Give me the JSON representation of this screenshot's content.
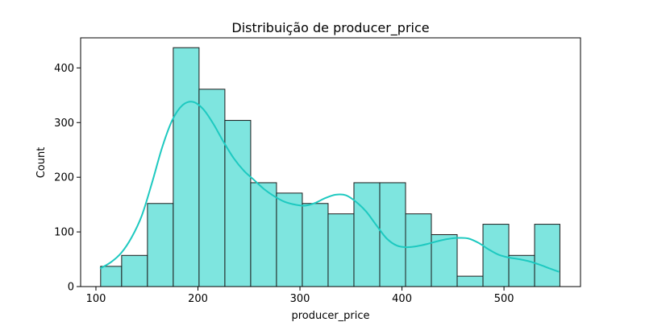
{
  "chart_data": {
    "type": "bar",
    "title": "Distribuição de producer_price",
    "xlabel": "producer_price",
    "ylabel": "Count",
    "xlim": [
      85,
      575
    ],
    "ylim": [
      0,
      455
    ],
    "x_ticks": [
      100,
      200,
      300,
      400,
      500
    ],
    "y_ticks": [
      0,
      100,
      200,
      300,
      400
    ],
    "grid": false,
    "bin_edges": [
      104.6,
      125.2,
      150.5,
      175.8,
      201.1,
      226.4,
      251.7,
      277.0,
      302.3,
      327.6,
      352.9,
      378.2,
      403.5,
      428.8,
      454.1,
      479.4,
      504.7,
      530.0,
      554.8
    ],
    "bins": [
      {
        "x0": 104.6,
        "x1": 125.2,
        "count": 37
      },
      {
        "x0": 125.2,
        "x1": 150.5,
        "count": 57
      },
      {
        "x0": 150.5,
        "x1": 175.8,
        "count": 152
      },
      {
        "x0": 175.8,
        "x1": 201.1,
        "count": 437
      },
      {
        "x0": 201.1,
        "x1": 226.4,
        "count": 361
      },
      {
        "x0": 226.4,
        "x1": 251.7,
        "count": 304
      },
      {
        "x0": 251.7,
        "x1": 277.0,
        "count": 190
      },
      {
        "x0": 277.0,
        "x1": 302.3,
        "count": 171
      },
      {
        "x0": 302.3,
        "x1": 327.6,
        "count": 152
      },
      {
        "x0": 327.6,
        "x1": 352.9,
        "count": 133
      },
      {
        "x0": 352.9,
        "x1": 378.2,
        "count": 190
      },
      {
        "x0": 378.2,
        "x1": 403.5,
        "count": 190
      },
      {
        "x0": 403.5,
        "x1": 428.8,
        "count": 133
      },
      {
        "x0": 428.8,
        "x1": 454.1,
        "count": 95
      },
      {
        "x0": 454.1,
        "x1": 479.4,
        "count": 19
      },
      {
        "x0": 479.4,
        "x1": 504.7,
        "count": 114
      },
      {
        "x0": 504.7,
        "x1": 530.0,
        "count": 57
      },
      {
        "x0": 530.0,
        "x1": 554.8,
        "count": 114
      }
    ],
    "kde": {
      "x": [
        104,
        115,
        125,
        135,
        145,
        155,
        165,
        175,
        185,
        195,
        205,
        215,
        225,
        235,
        245,
        255,
        265,
        275,
        285,
        295,
        305,
        315,
        325,
        335,
        345,
        355,
        365,
        375,
        385,
        395,
        405,
        415,
        425,
        435,
        445,
        455,
        465,
        475,
        485,
        495,
        505,
        515,
        525,
        535,
        545,
        554
      ],
      "y": [
        33,
        45,
        62,
        90,
        130,
        190,
        255,
        305,
        332,
        338,
        325,
        298,
        265,
        235,
        212,
        195,
        178,
        165,
        155,
        150,
        148,
        153,
        162,
        168,
        167,
        155,
        137,
        112,
        88,
        75,
        72,
        74,
        78,
        83,
        87,
        89,
        88,
        80,
        68,
        58,
        53,
        50,
        46,
        40,
        33,
        27
      ]
    },
    "colors": {
      "bar_fill": "#7ee5df",
      "bar_edge": "#1a1a1a",
      "kde_line": "#1ec9c0"
    }
  }
}
